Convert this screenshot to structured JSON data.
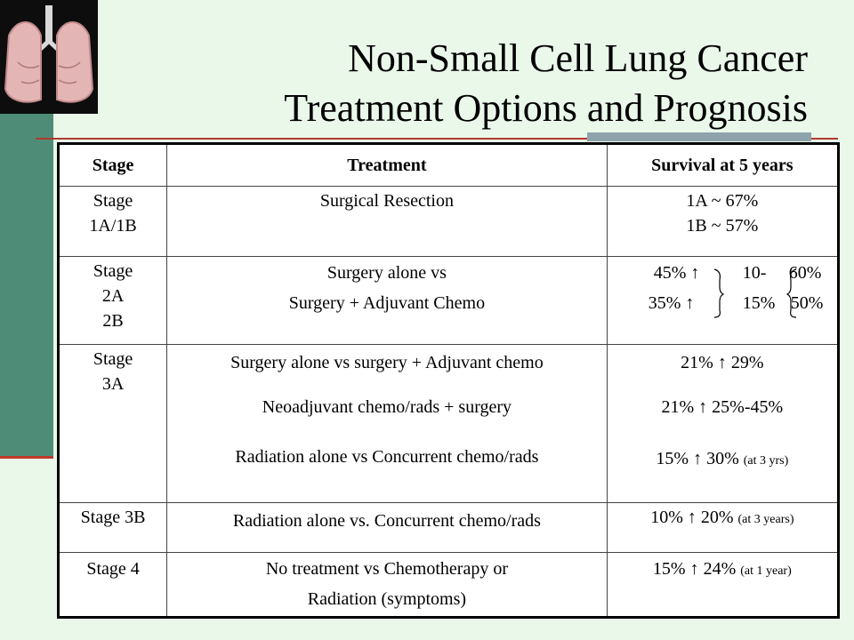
{
  "title": {
    "line1": "Non-Small Cell Lung Cancer",
    "line2": "Treatment Options and Prognosis"
  },
  "table": {
    "headers": {
      "stage": "Stage",
      "treatment": "Treatment",
      "survival": "Survival at 5 years"
    },
    "rows": [
      {
        "stage": [
          "Stage",
          "1A/1B"
        ],
        "treatment": [
          "Surgical Resection"
        ],
        "survival": [
          "1A ~ 67%",
          "1B ~ 57%"
        ]
      },
      {
        "stage": [
          "Stage",
          "2A",
          "2B"
        ],
        "treatment": [
          "Surgery alone vs",
          "Surgery + Adjuvant Chemo"
        ],
        "survival_grid": {
          "r1c1": "45% ↑",
          "r1c2": "10-",
          "r1c3": "60%",
          "r2c1": "35% ↑",
          "r2c2": "15%",
          "r2c3": "50%"
        }
      },
      {
        "stage": [
          "Stage",
          "3A"
        ],
        "treatment": [
          "Surgery alone vs surgery + Adjuvant chemo",
          "Neoadjuvant chemo/rads + surgery",
          "Radiation alone vs Concurrent chemo/rads"
        ],
        "survival": [
          "21% ↑ 29%",
          "21% ↑ 25%-45%",
          "15% ↑ 30%"
        ],
        "survival_note": "(at 3 yrs)"
      },
      {
        "stage": [
          "Stage 3B"
        ],
        "treatment": [
          "Radiation alone vs. Concurrent chemo/rads"
        ],
        "survival": [
          "10% ↑ 20%"
        ],
        "survival_note": "(at 3 years)"
      },
      {
        "stage": [
          "Stage 4"
        ],
        "treatment": [
          "No treatment vs Chemotherapy or",
          "Radiation (symptoms)"
        ],
        "survival": [
          "15% ↑ 24%"
        ],
        "survival_note": "(at 1 year)"
      }
    ]
  },
  "colors": {
    "background": "#eaf8ea",
    "side_bar": "#4e8c78",
    "accent_red": "#b03a2e",
    "accent_grey": "#8fa3ad"
  },
  "icons": [
    "lungs-illustration"
  ]
}
